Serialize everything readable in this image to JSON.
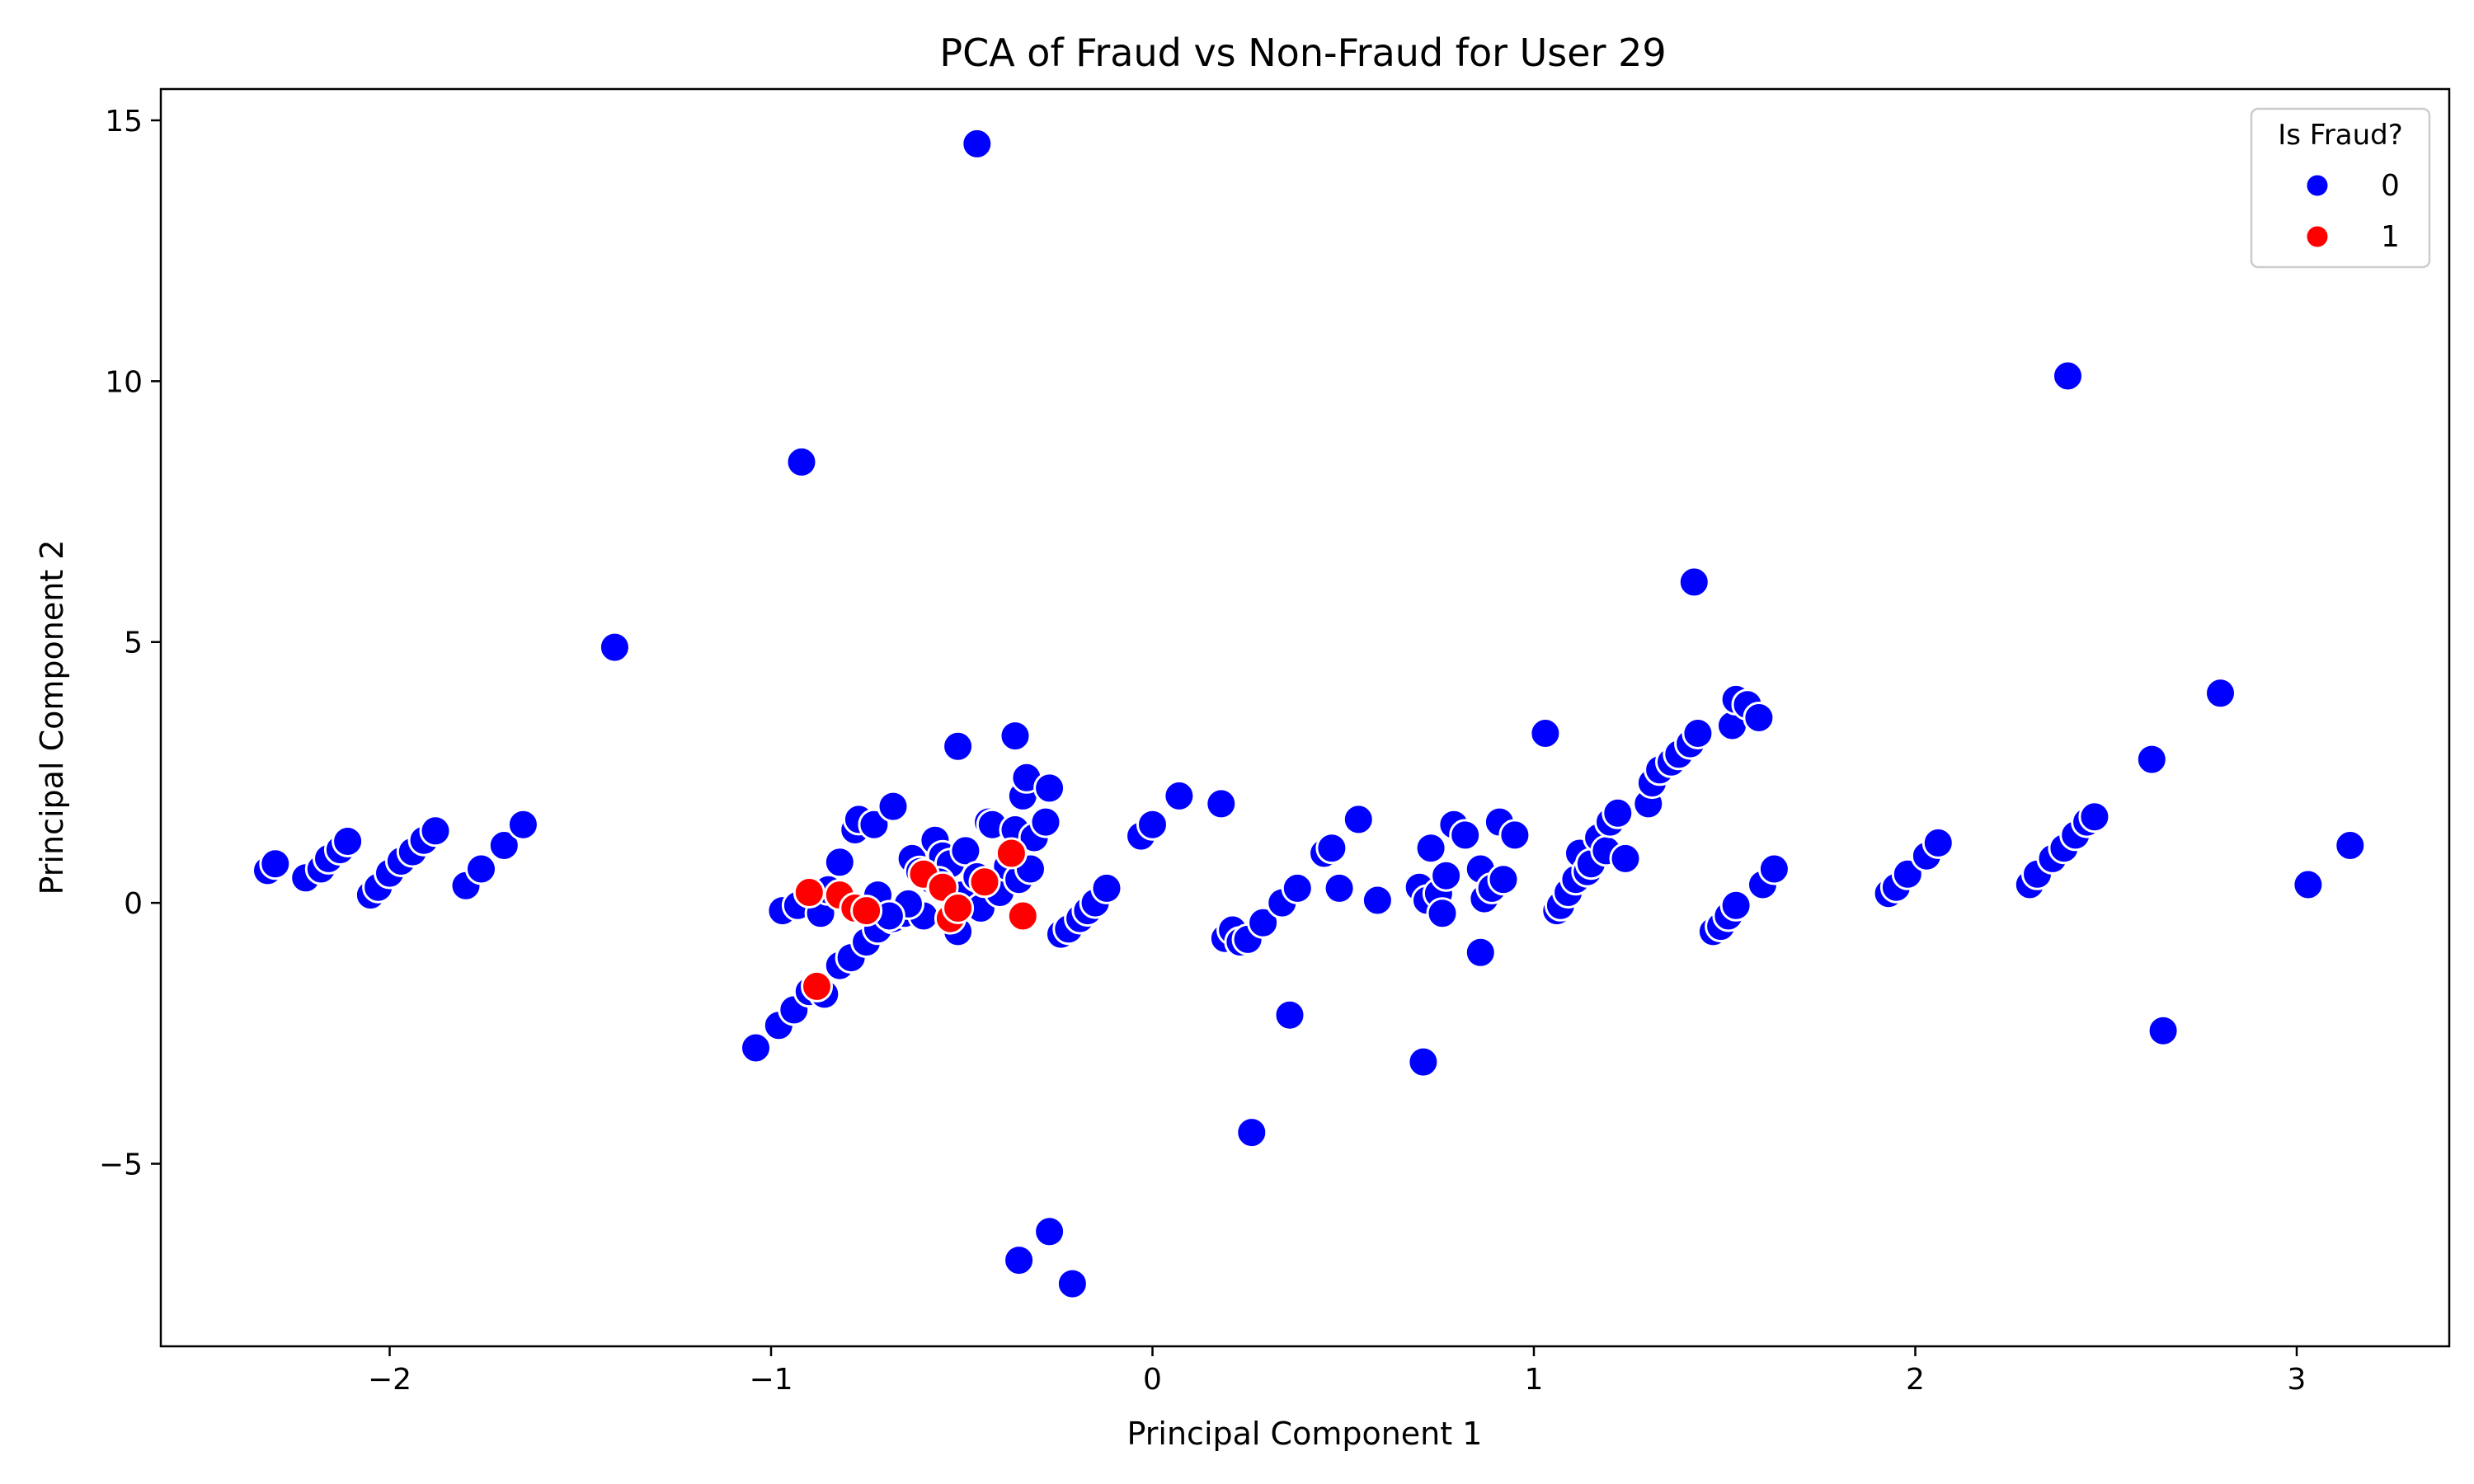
{
  "chart_data": {
    "type": "scatter",
    "title": "PCA of Fraud vs Non-Fraud for User 29",
    "xlabel": "Principal Component 1",
    "ylabel": "Principal Component 2",
    "xlim": [
      -2.6,
      3.4
    ],
    "ylim": [
      -8.5,
      15.6
    ],
    "xticks": [
      -2,
      -1,
      0,
      1,
      2,
      3
    ],
    "yticks": [
      -5,
      0,
      5,
      10,
      15
    ],
    "xtick_labels": [
      "−2",
      "−1",
      "0",
      "1",
      "2",
      "3"
    ],
    "ytick_labels": [
      "−5",
      "0",
      "5",
      "10",
      "15"
    ],
    "grid": false,
    "legend": {
      "title": "Is Fraud?",
      "placement": "top-right"
    },
    "series": [
      {
        "name": "0",
        "color": "#0000ff",
        "points": [
          [
            -2.32,
            0.62
          ],
          [
            -2.3,
            0.75
          ],
          [
            -2.22,
            0.48
          ],
          [
            -2.18,
            0.65
          ],
          [
            -2.16,
            0.85
          ],
          [
            -2.13,
            1.02
          ],
          [
            -2.11,
            1.18
          ],
          [
            -2.05,
            0.15
          ],
          [
            -2.03,
            0.3
          ],
          [
            -2.0,
            0.57
          ],
          [
            -1.97,
            0.8
          ],
          [
            -1.94,
            0.98
          ],
          [
            -1.91,
            1.2
          ],
          [
            -1.88,
            1.38
          ],
          [
            -1.8,
            0.33
          ],
          [
            -1.76,
            0.65
          ],
          [
            -1.7,
            1.1
          ],
          [
            -1.65,
            1.5
          ],
          [
            -1.41,
            4.9
          ],
          [
            -1.04,
            -2.78
          ],
          [
            -0.98,
            -2.35
          ],
          [
            -0.94,
            -2.05
          ],
          [
            -0.9,
            -1.7
          ],
          [
            -0.86,
            -1.75
          ],
          [
            -0.82,
            -1.2
          ],
          [
            -0.79,
            -1.05
          ],
          [
            -0.75,
            -0.75
          ],
          [
            -0.72,
            -0.5
          ],
          [
            -0.68,
            -0.3
          ],
          [
            -0.97,
            -0.15
          ],
          [
            -0.93,
            -0.05
          ],
          [
            -0.87,
            -0.2
          ],
          [
            -0.85,
            0.25
          ],
          [
            -0.82,
            0.78
          ],
          [
            -0.78,
            1.4
          ],
          [
            -0.77,
            1.6
          ],
          [
            -0.73,
            1.5
          ],
          [
            -0.72,
            0.15
          ],
          [
            -0.68,
            1.85
          ],
          [
            -0.65,
            -0.2
          ],
          [
            -0.63,
            0.85
          ],
          [
            -0.61,
            0.6
          ],
          [
            -0.6,
            -0.25
          ],
          [
            -0.58,
            0.45
          ],
          [
            -0.57,
            1.2
          ],
          [
            -0.55,
            0.9
          ],
          [
            -0.53,
            0.75
          ],
          [
            -0.51,
            -0.55
          ],
          [
            -0.5,
            0.15
          ],
          [
            -0.49,
            1.0
          ],
          [
            -0.46,
            0.5
          ],
          [
            -0.45,
            -0.1
          ],
          [
            -0.43,
            1.55
          ],
          [
            -0.42,
            1.5
          ],
          [
            -0.4,
            0.2
          ],
          [
            -0.38,
            0.7
          ],
          [
            -0.36,
            1.4
          ],
          [
            -0.35,
            0.45
          ],
          [
            -0.34,
            2.05
          ],
          [
            -0.33,
            2.4
          ],
          [
            -0.32,
            0.65
          ],
          [
            -0.31,
            1.25
          ],
          [
            -0.28,
            1.55
          ],
          [
            -0.27,
            2.2
          ],
          [
            -0.36,
            3.2
          ],
          [
            -0.51,
            3.0
          ],
          [
            -0.64,
            -0.02
          ],
          [
            -0.69,
            -0.25
          ],
          [
            -0.56,
            0.4
          ],
          [
            -0.46,
            14.55
          ],
          [
            -0.92,
            8.45
          ],
          [
            -0.35,
            -6.85
          ],
          [
            -0.27,
            -6.3
          ],
          [
            -0.21,
            -7.3
          ],
          [
            -0.24,
            -0.6
          ],
          [
            -0.22,
            -0.5
          ],
          [
            -0.19,
            -0.3
          ],
          [
            -0.17,
            -0.15
          ],
          [
            -0.15,
            0.0
          ],
          [
            -0.12,
            0.28
          ],
          [
            -0.03,
            1.28
          ],
          [
            0.0,
            1.5
          ],
          [
            0.07,
            2.05
          ],
          [
            0.18,
            1.9
          ],
          [
            0.19,
            -0.68
          ],
          [
            0.21,
            -0.52
          ],
          [
            0.23,
            -0.75
          ],
          [
            0.25,
            -0.7
          ],
          [
            0.29,
            -0.38
          ],
          [
            0.34,
            0.0
          ],
          [
            0.36,
            -2.15
          ],
          [
            0.38,
            0.28
          ],
          [
            0.26,
            -4.4
          ],
          [
            0.45,
            0.95
          ],
          [
            0.47,
            1.05
          ],
          [
            0.49,
            0.28
          ],
          [
            0.54,
            1.6
          ],
          [
            0.59,
            0.05
          ],
          [
            0.7,
            0.3
          ],
          [
            0.71,
            -3.05
          ],
          [
            0.72,
            0.05
          ],
          [
            0.73,
            1.05
          ],
          [
            0.75,
            0.18
          ],
          [
            0.76,
            -0.2
          ],
          [
            0.77,
            0.52
          ],
          [
            0.79,
            1.5
          ],
          [
            0.82,
            1.3
          ],
          [
            0.86,
            0.65
          ],
          [
            0.86,
            -0.95
          ],
          [
            0.87,
            0.08
          ],
          [
            0.89,
            0.28
          ],
          [
            0.91,
            1.55
          ],
          [
            0.92,
            0.45
          ],
          [
            0.95,
            1.3
          ],
          [
            1.03,
            3.25
          ],
          [
            1.06,
            -0.15
          ],
          [
            1.07,
            -0.05
          ],
          [
            1.09,
            0.2
          ],
          [
            1.11,
            0.45
          ],
          [
            1.12,
            0.95
          ],
          [
            1.14,
            0.6
          ],
          [
            1.15,
            0.75
          ],
          [
            1.17,
            1.25
          ],
          [
            1.19,
            1.0
          ],
          [
            1.2,
            1.55
          ],
          [
            1.22,
            1.72
          ],
          [
            1.24,
            0.85
          ],
          [
            1.3,
            1.9
          ],
          [
            1.31,
            2.3
          ],
          [
            1.33,
            2.55
          ],
          [
            1.36,
            2.7
          ],
          [
            1.38,
            2.85
          ],
          [
            1.41,
            3.05
          ],
          [
            1.43,
            3.25
          ],
          [
            1.42,
            6.15
          ],
          [
            1.47,
            -0.55
          ],
          [
            1.49,
            -0.45
          ],
          [
            1.51,
            -0.25
          ],
          [
            1.53,
            -0.05
          ],
          [
            1.52,
            3.4
          ],
          [
            1.53,
            3.9
          ],
          [
            1.56,
            3.8
          ],
          [
            1.59,
            3.55
          ],
          [
            1.6,
            0.35
          ],
          [
            1.63,
            0.65
          ],
          [
            1.93,
            0.18
          ],
          [
            1.95,
            0.3
          ],
          [
            1.98,
            0.55
          ],
          [
            2.03,
            0.9
          ],
          [
            2.06,
            1.15
          ],
          [
            2.3,
            0.35
          ],
          [
            2.32,
            0.55
          ],
          [
            2.36,
            0.85
          ],
          [
            2.39,
            1.05
          ],
          [
            2.42,
            1.3
          ],
          [
            2.45,
            1.55
          ],
          [
            2.47,
            1.65
          ],
          [
            2.4,
            10.1
          ],
          [
            2.62,
            2.75
          ],
          [
            2.65,
            -2.45
          ],
          [
            2.8,
            4.02
          ],
          [
            3.03,
            0.35
          ],
          [
            3.14,
            1.1
          ]
        ]
      },
      {
        "name": "1",
        "color": "#ff0000",
        "points": [
          [
            -0.9,
            0.2
          ],
          [
            -0.88,
            -1.6
          ],
          [
            -0.82,
            0.15
          ],
          [
            -0.78,
            -0.1
          ],
          [
            -0.75,
            -0.15
          ],
          [
            -0.6,
            0.55
          ],
          [
            -0.55,
            0.3
          ],
          [
            -0.53,
            -0.3
          ],
          [
            -0.51,
            -0.1
          ],
          [
            -0.44,
            0.4
          ],
          [
            -0.37,
            0.95
          ],
          [
            -0.34,
            -0.25
          ]
        ]
      }
    ]
  }
}
